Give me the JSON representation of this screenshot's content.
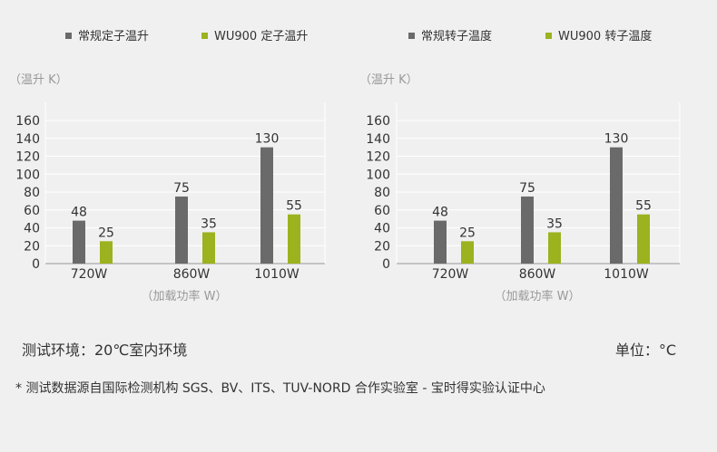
{
  "colors": {
    "conventional": "#6a6a6a",
    "wu900": "#9cb21e",
    "grid": "#ffffff",
    "axis": "#999999"
  },
  "chart_data": [
    {
      "type": "bar",
      "ylabel": "（温升 K）",
      "xlabel": "（加载功率 W）",
      "categories": [
        "720W",
        "860W",
        "1010W"
      ],
      "ylim": [
        0,
        160
      ],
      "yticks": [
        0,
        20,
        40,
        60,
        80,
        100,
        120,
        140,
        160
      ],
      "grid": true,
      "legend_position": "top",
      "series": [
        {
          "name": "常规定子温升",
          "color": "#6a6a6a",
          "values": [
            48,
            75,
            130
          ]
        },
        {
          "name": "WU900 定子温升",
          "color": "#9cb21e",
          "values": [
            25,
            35,
            55
          ]
        }
      ]
    },
    {
      "type": "bar",
      "ylabel": "（温升 K）",
      "xlabel": "（加载功率 W）",
      "categories": [
        "720W",
        "860W",
        "1010W"
      ],
      "ylim": [
        0,
        160
      ],
      "yticks": [
        0,
        20,
        40,
        60,
        80,
        100,
        120,
        140,
        160
      ],
      "grid": true,
      "legend_position": "top",
      "series": [
        {
          "name": "常规转子温度",
          "color": "#6a6a6a",
          "values": [
            48,
            75,
            130
          ]
        },
        {
          "name": "WU900 转子温度",
          "color": "#9cb21e",
          "values": [
            25,
            35,
            55
          ]
        }
      ]
    }
  ],
  "footer": {
    "environment": "测试环境：20℃室内环境",
    "unit": "单位：°C",
    "note": "* 测试数据源自国际检测机构 SGS、BV、ITS、TUV-NORD 合作实验室 - 宝时得实验认证中心"
  }
}
